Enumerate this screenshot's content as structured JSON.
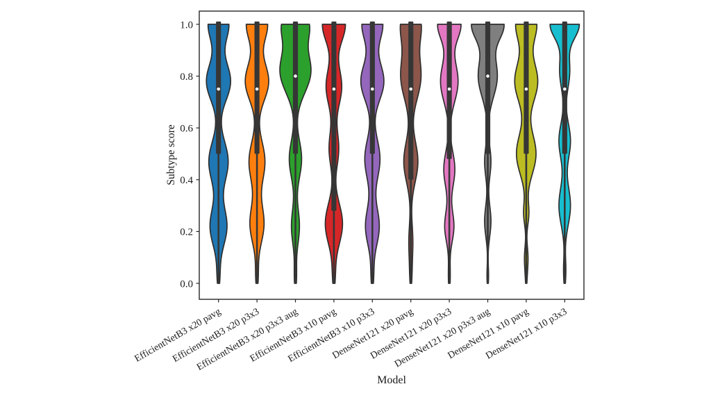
{
  "figure": {
    "background": "#ffffff",
    "text_color": "#1a1a1a"
  },
  "chart_data": {
    "type": "violin",
    "title": "",
    "xlabel": "Model",
    "ylabel": "Subtype score",
    "ylim": [
      -0.06,
      1.06
    ],
    "violin_value_range": [
      0.0,
      1.0
    ],
    "grid": false,
    "legend": "none",
    "palette_name": "matplotlib-tab10",
    "axis_color": "#262626",
    "edge_color": "#2d2d2d",
    "inner_box_color": "#363636",
    "median_dot_color": "#ffffff",
    "x_tick_rotation_deg": 30,
    "yticks": [
      {
        "value": 0.0,
        "label": "0.0"
      },
      {
        "value": 0.2,
        "label": "0.2"
      },
      {
        "value": 0.4,
        "label": "0.4"
      },
      {
        "value": 0.6,
        "label": "0.6"
      },
      {
        "value": 0.8,
        "label": "0.8"
      },
      {
        "value": 1.0,
        "label": "1.0"
      }
    ],
    "models": [
      {
        "label": "EfficientNetB3 x20 pavg",
        "color": "#1f77b4",
        "median": 0.75,
        "q1": 0.5,
        "q3": 1.0,
        "whisker_low": 0.0,
        "whisker_high": 1.0,
        "max_width_frac": 0.63,
        "kde_modes": [
          {
            "v": 1.0,
            "w": 0.85,
            "s": 0.065
          },
          {
            "v": 0.78,
            "w": 1.0,
            "s": 0.075
          },
          {
            "v": 0.47,
            "w": 0.8,
            "s": 0.08
          },
          {
            "v": 0.22,
            "w": 0.7,
            "s": 0.075
          },
          {
            "v": 0.03,
            "w": 0.1,
            "s": 0.05
          }
        ]
      },
      {
        "label": "EfficientNetB3 x20 p3x3",
        "color": "#ff7f0e",
        "median": 0.75,
        "q1": 0.5,
        "q3": 1.0,
        "whisker_low": 0.0,
        "whisker_high": 1.0,
        "max_width_frac": 0.61,
        "kde_modes": [
          {
            "v": 1.0,
            "w": 0.9,
            "s": 0.065
          },
          {
            "v": 0.78,
            "w": 1.0,
            "s": 0.075
          },
          {
            "v": 0.47,
            "w": 0.68,
            "s": 0.08
          },
          {
            "v": 0.23,
            "w": 0.6,
            "s": 0.075
          },
          {
            "v": 0.03,
            "w": 0.1,
            "s": 0.05
          }
        ]
      },
      {
        "label": "EfficientNetB3 x20 p3x3 aug",
        "color": "#2ca02c",
        "median": 0.8,
        "q1": 0.5,
        "q3": 1.0,
        "whisker_low": 0.0,
        "whisker_high": 1.0,
        "max_width_frac": 0.81,
        "kde_modes": [
          {
            "v": 1.0,
            "w": 0.8,
            "s": 0.06
          },
          {
            "v": 0.82,
            "w": 1.0,
            "s": 0.085
          },
          {
            "v": 0.48,
            "w": 0.4,
            "s": 0.075
          },
          {
            "v": 0.22,
            "w": 0.26,
            "s": 0.07
          },
          {
            "v": 0.03,
            "w": 0.07,
            "s": 0.05
          }
        ]
      },
      {
        "label": "EfficientNetB3 x10 pavg",
        "color": "#d62728",
        "median": 0.75,
        "q1": 0.28,
        "q3": 1.0,
        "whisker_low": 0.0,
        "whisker_high": 1.0,
        "max_width_frac": 0.6,
        "kde_modes": [
          {
            "v": 1.0,
            "w": 1.0,
            "s": 0.07
          },
          {
            "v": 0.76,
            "w": 0.68,
            "s": 0.075
          },
          {
            "v": 0.52,
            "w": 0.42,
            "s": 0.07
          },
          {
            "v": 0.23,
            "w": 0.75,
            "s": 0.08
          },
          {
            "v": 0.03,
            "w": 0.1,
            "s": 0.05
          }
        ]
      },
      {
        "label": "EfficientNetB3 x10 p3x3",
        "color": "#9467bd",
        "median": 0.75,
        "q1": 0.5,
        "q3": 1.0,
        "whisker_low": 0.0,
        "whisker_high": 1.0,
        "max_width_frac": 0.6,
        "kde_modes": [
          {
            "v": 1.0,
            "w": 0.9,
            "s": 0.065
          },
          {
            "v": 0.78,
            "w": 1.0,
            "s": 0.075
          },
          {
            "v": 0.48,
            "w": 0.66,
            "s": 0.08
          },
          {
            "v": 0.22,
            "w": 0.6,
            "s": 0.075
          },
          {
            "v": 0.03,
            "w": 0.1,
            "s": 0.05
          }
        ]
      },
      {
        "label": "DenseNet121 x20 pavg",
        "color": "#8c564b",
        "median": 0.75,
        "q1": 0.4,
        "q3": 1.0,
        "whisker_low": 0.0,
        "whisker_high": 1.0,
        "max_width_frac": 0.55,
        "kde_modes": [
          {
            "v": 1.0,
            "w": 0.95,
            "s": 0.07
          },
          {
            "v": 0.8,
            "w": 1.0,
            "s": 0.09
          },
          {
            "v": 0.47,
            "w": 0.7,
            "s": 0.08
          },
          {
            "v": 0.16,
            "w": 0.2,
            "s": 0.07
          },
          {
            "v": 0.03,
            "w": 0.08,
            "s": 0.05
          }
        ]
      },
      {
        "label": "DenseNet121 x20 p3x3",
        "color": "#e377c2",
        "median": 0.75,
        "q1": 0.48,
        "q3": 1.0,
        "whisker_low": 0.0,
        "whisker_high": 1.0,
        "max_width_frac": 0.61,
        "kde_modes": [
          {
            "v": 1.0,
            "w": 1.0,
            "s": 0.06
          },
          {
            "v": 0.78,
            "w": 0.76,
            "s": 0.08
          },
          {
            "v": 0.44,
            "w": 0.48,
            "s": 0.07
          },
          {
            "v": 0.22,
            "w": 0.4,
            "s": 0.06
          },
          {
            "v": 0.03,
            "w": 0.08,
            "s": 0.05
          }
        ]
      },
      {
        "label": "DenseNet121 x20 p3x3 aug",
        "color": "#7f7f7f",
        "median": 0.8,
        "q1": 0.5,
        "q3": 1.0,
        "whisker_low": 0.0,
        "whisker_high": 1.0,
        "max_width_frac": 0.85,
        "kde_modes": [
          {
            "v": 1.0,
            "w": 1.0,
            "s": 0.06
          },
          {
            "v": 0.8,
            "w": 0.6,
            "s": 0.08
          },
          {
            "v": 0.47,
            "w": 0.2,
            "s": 0.06
          },
          {
            "v": 0.24,
            "w": 0.2,
            "s": 0.06
          },
          {
            "v": 0.03,
            "w": 0.05,
            "s": 0.04
          }
        ]
      },
      {
        "label": "DenseNet121 x10 pavg",
        "color": "#bcbd22",
        "median": 0.75,
        "q1": 0.5,
        "q3": 1.0,
        "whisker_low": 0.0,
        "whisker_high": 1.0,
        "max_width_frac": 0.6,
        "kde_modes": [
          {
            "v": 1.0,
            "w": 0.9,
            "s": 0.065
          },
          {
            "v": 0.78,
            "w": 1.0,
            "s": 0.08
          },
          {
            "v": 0.5,
            "w": 0.85,
            "s": 0.08
          },
          {
            "v": 0.27,
            "w": 0.22,
            "s": 0.045
          },
          {
            "v": 0.1,
            "w": 0.15,
            "s": 0.045
          },
          {
            "v": 0.02,
            "w": 0.05,
            "s": 0.04
          }
        ]
      },
      {
        "label": "DenseNet121 x10 p3x3",
        "color": "#17becf",
        "median": 0.75,
        "q1": 0.5,
        "q3": 1.0,
        "whisker_low": 0.0,
        "whisker_high": 1.0,
        "max_width_frac": 0.76,
        "kde_modes": [
          {
            "v": 1.0,
            "w": 1.0,
            "s": 0.055
          },
          {
            "v": 0.82,
            "w": 0.35,
            "s": 0.07
          },
          {
            "v": 0.55,
            "w": 0.4,
            "s": 0.07
          },
          {
            "v": 0.3,
            "w": 0.4,
            "s": 0.075
          },
          {
            "v": 0.05,
            "w": 0.08,
            "s": 0.05
          }
        ]
      }
    ]
  }
}
